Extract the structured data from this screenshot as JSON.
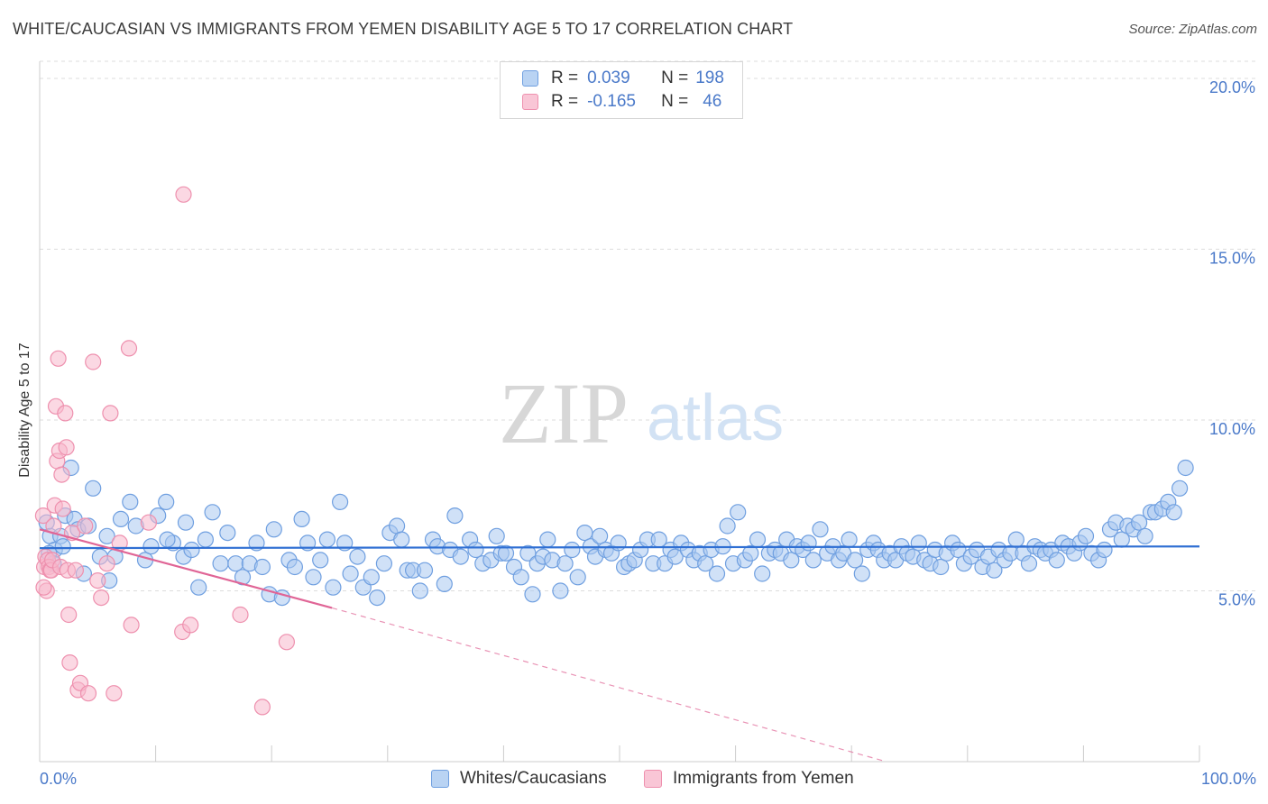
{
  "title": "WHITE/CAUCASIAN VS IMMIGRANTS FROM YEMEN DISABILITY AGE 5 TO 17 CORRELATION CHART",
  "source": "Source: ZipAtlas.com",
  "watermark": {
    "zip": "ZIP",
    "atlas": "atlas"
  },
  "legend": {
    "row1": {
      "r_label": "R =",
      "r_value": "0.039",
      "n_label": "N =",
      "n_value": "198"
    },
    "row2": {
      "r_label": "R =",
      "r_value": "-0.165",
      "n_label": "N =",
      "n_value": "46"
    }
  },
  "chart_data": {
    "type": "scatter",
    "title": "WHITE/CAUCASIAN VS IMMIGRANTS FROM YEMEN DISABILITY AGE 5 TO 17 CORRELATION CHART",
    "xlabel": "",
    "ylabel": "Disability Age 5 to 17",
    "xlim": [
      0,
      100
    ],
    "ylim": [
      0,
      20.5
    ],
    "x_tick_labels": [
      "0.0%",
      "100.0%"
    ],
    "y_ticks": [
      5,
      10,
      15,
      20
    ],
    "y_tick_labels": [
      "5.0%",
      "10.0%",
      "15.0%",
      "20.0%"
    ],
    "grid": "horizontal dashed",
    "legend_position": "top-center",
    "colors": {
      "series1_fill": "#a9c8f0",
      "series1_stroke": "#6f9fe0",
      "series1_line": "#2f6fd3",
      "series2_fill": "#f7b8cc",
      "series2_stroke": "#ee90ae",
      "series2_line": "#e06596",
      "tick_label": "#4a79c9"
    },
    "series": [
      {
        "name": "Whites/Caucasians",
        "trend": {
          "x": [
            0,
            100
          ],
          "y": [
            6.25,
            6.3
          ]
        },
        "points": [
          [
            0.6,
            7.0
          ],
          [
            0.9,
            6.6
          ],
          [
            1.3,
            6.2
          ],
          [
            1.8,
            6.6
          ],
          [
            2.7,
            8.6
          ],
          [
            2.2,
            7.2
          ],
          [
            3.0,
            7.1
          ],
          [
            3.8,
            5.5
          ],
          [
            4.6,
            8.0
          ],
          [
            5.2,
            6.0
          ],
          [
            6.0,
            5.3
          ],
          [
            7.0,
            7.1
          ],
          [
            7.8,
            7.6
          ],
          [
            8.3,
            6.9
          ],
          [
            9.1,
            5.9
          ],
          [
            10.2,
            7.2
          ],
          [
            10.9,
            7.6
          ],
          [
            11.5,
            6.4
          ],
          [
            12.4,
            6.0
          ],
          [
            12.6,
            7.0
          ],
          [
            13.1,
            6.2
          ],
          [
            13.7,
            5.1
          ],
          [
            14.3,
            6.5
          ],
          [
            14.9,
            7.3
          ],
          [
            15.6,
            5.8
          ],
          [
            16.2,
            6.7
          ],
          [
            16.9,
            5.8
          ],
          [
            17.5,
            5.4
          ],
          [
            18.1,
            5.8
          ],
          [
            18.7,
            6.4
          ],
          [
            19.2,
            5.7
          ],
          [
            19.8,
            4.9
          ],
          [
            20.2,
            6.8
          ],
          [
            20.9,
            4.8
          ],
          [
            21.5,
            5.9
          ],
          [
            22.0,
            5.7
          ],
          [
            22.6,
            7.1
          ],
          [
            23.1,
            6.4
          ],
          [
            23.6,
            5.4
          ],
          [
            24.2,
            5.9
          ],
          [
            24.8,
            6.5
          ],
          [
            25.3,
            5.1
          ],
          [
            25.9,
            7.6
          ],
          [
            26.3,
            6.4
          ],
          [
            26.8,
            5.5
          ],
          [
            27.4,
            6.0
          ],
          [
            27.9,
            5.1
          ],
          [
            28.6,
            5.4
          ],
          [
            29.1,
            4.8
          ],
          [
            29.7,
            5.8
          ],
          [
            30.2,
            6.7
          ],
          [
            30.8,
            6.9
          ],
          [
            31.2,
            6.5
          ],
          [
            31.7,
            5.6
          ],
          [
            32.2,
            5.6
          ],
          [
            32.8,
            5.0
          ],
          [
            33.2,
            5.6
          ],
          [
            33.9,
            6.5
          ],
          [
            34.3,
            6.3
          ],
          [
            34.9,
            5.2
          ],
          [
            35.4,
            6.2
          ],
          [
            35.8,
            7.2
          ],
          [
            36.3,
            6.0
          ],
          [
            37.1,
            6.5
          ],
          [
            37.6,
            6.2
          ],
          [
            38.2,
            5.8
          ],
          [
            38.9,
            5.9
          ],
          [
            39.4,
            6.6
          ],
          [
            39.8,
            6.1
          ],
          [
            40.2,
            6.1
          ],
          [
            40.9,
            5.7
          ],
          [
            41.5,
            5.4
          ],
          [
            42.1,
            6.1
          ],
          [
            42.5,
            4.9
          ],
          [
            42.9,
            5.8
          ],
          [
            43.4,
            6.0
          ],
          [
            43.8,
            6.5
          ],
          [
            44.2,
            5.9
          ],
          [
            44.9,
            5.0
          ],
          [
            45.3,
            5.8
          ],
          [
            45.9,
            6.2
          ],
          [
            46.4,
            5.4
          ],
          [
            47.0,
            6.7
          ],
          [
            47.5,
            6.3
          ],
          [
            47.9,
            6.0
          ],
          [
            48.3,
            6.6
          ],
          [
            48.8,
            6.2
          ],
          [
            49.3,
            6.1
          ],
          [
            49.9,
            6.4
          ],
          [
            50.4,
            5.7
          ],
          [
            50.8,
            5.8
          ],
          [
            51.3,
            5.9
          ],
          [
            51.8,
            6.2
          ],
          [
            52.4,
            6.5
          ],
          [
            52.9,
            5.8
          ],
          [
            53.4,
            6.5
          ],
          [
            53.9,
            5.8
          ],
          [
            54.4,
            6.2
          ],
          [
            54.8,
            6.0
          ],
          [
            55.3,
            6.4
          ],
          [
            55.9,
            6.2
          ],
          [
            56.4,
            5.9
          ],
          [
            56.9,
            6.1
          ],
          [
            57.4,
            5.8
          ],
          [
            57.9,
            6.2
          ],
          [
            58.4,
            5.5
          ],
          [
            58.9,
            6.3
          ],
          [
            59.3,
            6.9
          ],
          [
            59.8,
            5.8
          ],
          [
            60.2,
            7.3
          ],
          [
            60.8,
            5.9
          ],
          [
            61.3,
            6.1
          ],
          [
            61.9,
            6.5
          ],
          [
            62.3,
            5.5
          ],
          [
            62.9,
            6.1
          ],
          [
            63.4,
            6.2
          ],
          [
            63.9,
            6.1
          ],
          [
            64.4,
            6.5
          ],
          [
            64.8,
            5.9
          ],
          [
            65.3,
            6.3
          ],
          [
            65.8,
            6.2
          ],
          [
            66.3,
            6.4
          ],
          [
            66.7,
            5.9
          ],
          [
            67.3,
            6.8
          ],
          [
            67.9,
            6.1
          ],
          [
            68.4,
            6.3
          ],
          [
            68.9,
            5.9
          ],
          [
            69.3,
            6.1
          ],
          [
            69.8,
            6.5
          ],
          [
            70.3,
            5.9
          ],
          [
            70.9,
            5.5
          ],
          [
            71.4,
            6.2
          ],
          [
            71.9,
            6.4
          ],
          [
            72.3,
            6.2
          ],
          [
            72.8,
            5.9
          ],
          [
            73.3,
            6.1
          ],
          [
            73.8,
            5.9
          ],
          [
            74.3,
            6.3
          ],
          [
            74.8,
            6.1
          ],
          [
            75.3,
            6.0
          ],
          [
            75.8,
            6.4
          ],
          [
            76.3,
            5.9
          ],
          [
            76.8,
            5.8
          ],
          [
            77.2,
            6.2
          ],
          [
            77.7,
            5.7
          ],
          [
            78.2,
            6.1
          ],
          [
            78.7,
            6.4
          ],
          [
            79.2,
            6.2
          ],
          [
            79.7,
            5.8
          ],
          [
            80.3,
            6.0
          ],
          [
            80.8,
            6.2
          ],
          [
            81.3,
            5.7
          ],
          [
            81.8,
            6.0
          ],
          [
            82.3,
            5.6
          ],
          [
            82.7,
            6.2
          ],
          [
            83.2,
            5.9
          ],
          [
            83.7,
            6.1
          ],
          [
            84.2,
            6.5
          ],
          [
            84.8,
            6.1
          ],
          [
            85.3,
            5.8
          ],
          [
            85.8,
            6.3
          ],
          [
            86.3,
            6.2
          ],
          [
            86.7,
            6.1
          ],
          [
            87.2,
            6.2
          ],
          [
            87.7,
            5.9
          ],
          [
            88.2,
            6.4
          ],
          [
            88.7,
            6.3
          ],
          [
            89.2,
            6.1
          ],
          [
            89.7,
            6.4
          ],
          [
            90.2,
            6.6
          ],
          [
            90.7,
            6.1
          ],
          [
            91.3,
            5.9
          ],
          [
            91.8,
            6.2
          ],
          [
            92.3,
            6.8
          ],
          [
            92.8,
            7.0
          ],
          [
            93.3,
            6.5
          ],
          [
            93.8,
            6.9
          ],
          [
            94.3,
            6.8
          ],
          [
            94.8,
            7.0
          ],
          [
            95.3,
            6.6
          ],
          [
            95.8,
            7.3
          ],
          [
            96.2,
            7.3
          ],
          [
            96.8,
            7.4
          ],
          [
            97.3,
            7.6
          ],
          [
            97.8,
            7.3
          ],
          [
            98.3,
            8.0
          ],
          [
            98.8,
            8.6
          ],
          [
            0.8,
            6.1
          ],
          [
            1.2,
            5.8
          ],
          [
            2.0,
            6.3
          ],
          [
            3.3,
            6.8
          ],
          [
            4.2,
            6.9
          ],
          [
            5.8,
            6.6
          ],
          [
            6.5,
            6.0
          ],
          [
            9.6,
            6.3
          ],
          [
            11.0,
            6.5
          ]
        ]
      },
      {
        "name": "Immigrants from Yemen",
        "trend": {
          "x": [
            0,
            25.2
          ],
          "y": [
            6.8,
            4.5
          ]
        },
        "trend_extension": {
          "x": [
            25.2,
            73
          ],
          "y": [
            4.5,
            0
          ]
        },
        "points": [
          [
            0.3,
            7.2
          ],
          [
            0.4,
            5.7
          ],
          [
            0.5,
            6.0
          ],
          [
            0.6,
            5.0
          ],
          [
            0.7,
            5.9
          ],
          [
            0.8,
            5.7
          ],
          [
            0.9,
            5.6
          ],
          [
            1.0,
            5.6
          ],
          [
            1.1,
            5.9
          ],
          [
            1.2,
            6.9
          ],
          [
            1.3,
            7.5
          ],
          [
            1.4,
            10.4
          ],
          [
            1.5,
            8.8
          ],
          [
            1.6,
            11.8
          ],
          [
            1.7,
            9.1
          ],
          [
            1.8,
            5.7
          ],
          [
            1.9,
            8.4
          ],
          [
            2.0,
            7.4
          ],
          [
            2.2,
            10.2
          ],
          [
            2.3,
            9.2
          ],
          [
            2.4,
            5.6
          ],
          [
            2.5,
            4.3
          ],
          [
            2.6,
            2.9
          ],
          [
            2.8,
            6.7
          ],
          [
            3.1,
            5.6
          ],
          [
            3.3,
            2.1
          ],
          [
            3.5,
            2.3
          ],
          [
            3.9,
            6.9
          ],
          [
            4.2,
            2.0
          ],
          [
            4.6,
            11.7
          ],
          [
            5.0,
            5.3
          ],
          [
            5.3,
            4.8
          ],
          [
            5.8,
            5.8
          ],
          [
            6.1,
            10.2
          ],
          [
            6.4,
            2.0
          ],
          [
            6.9,
            6.4
          ],
          [
            7.7,
            12.1
          ],
          [
            7.9,
            4.0
          ],
          [
            9.4,
            7.0
          ],
          [
            12.3,
            3.8
          ],
          [
            12.4,
            16.6
          ],
          [
            13.0,
            4.0
          ],
          [
            17.3,
            4.3
          ],
          [
            19.2,
            1.6
          ],
          [
            21.3,
            3.5
          ],
          [
            0.35,
            5.1
          ]
        ]
      }
    ]
  },
  "bottom_legend": {
    "series1": "Whites/Caucasians",
    "series2": "Immigrants from Yemen"
  }
}
